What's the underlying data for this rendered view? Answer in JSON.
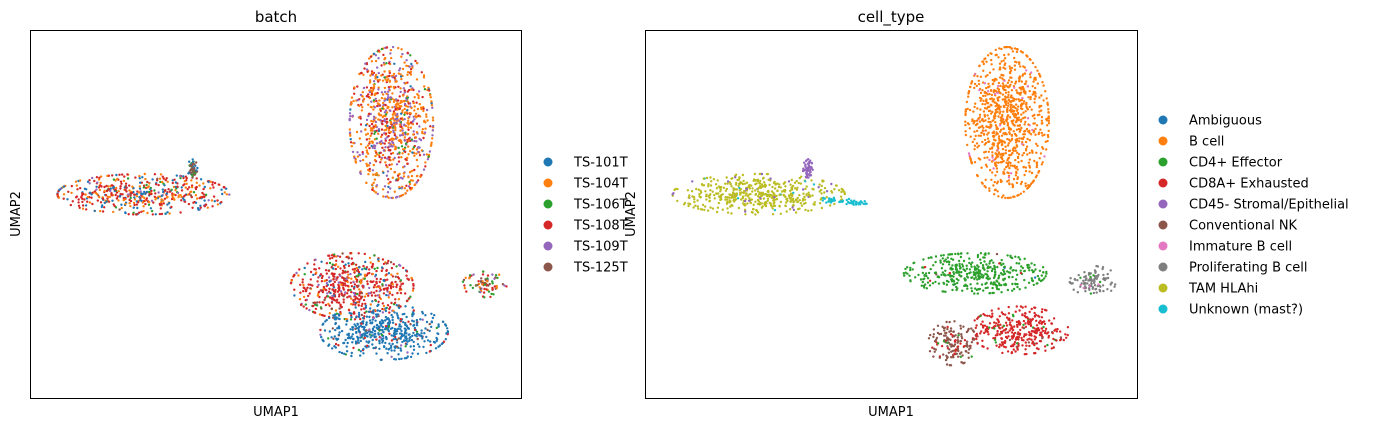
{
  "chart_data": [
    {
      "type": "scatter",
      "title": "batch",
      "xlabel": "UMAP1",
      "ylabel": "UMAP2",
      "xlim": [
        0,
        10
      ],
      "ylim": [
        0,
        10
      ],
      "grid": false,
      "ticks": false,
      "legend": "right",
      "series": [
        {
          "name": "TS-101T",
          "color": "#1f77b4"
        },
        {
          "name": "TS-104T",
          "color": "#ff7f0e"
        },
        {
          "name": "TS-106T",
          "color": "#2ca02c"
        },
        {
          "name": "TS-108T",
          "color": "#d62728"
        },
        {
          "name": "TS-109T",
          "color": "#9467bd"
        },
        {
          "name": "TS-125T",
          "color": "#8c564b"
        }
      ],
      "clusters": [
        {
          "shape": "blob",
          "cx": 7.35,
          "cy": 7.5,
          "rx": 0.85,
          "ry": 2.05,
          "weights": [
            0.03,
            0.46,
            0.04,
            0.19,
            0.28,
            0.0
          ]
        },
        {
          "shape": "blob",
          "cx": 6.55,
          "cy": 3.05,
          "rx": 1.25,
          "ry": 0.9,
          "weights": [
            0.06,
            0.14,
            0.05,
            0.62,
            0.08,
            0.05
          ]
        },
        {
          "shape": "blob",
          "cx": 7.2,
          "cy": 1.8,
          "rx": 1.3,
          "ry": 0.75,
          "weights": [
            0.85,
            0.0,
            0.03,
            0.08,
            0.02,
            0.02
          ]
        },
        {
          "shape": "blob",
          "cx": 9.25,
          "cy": 3.1,
          "rx": 0.45,
          "ry": 0.35,
          "weights": [
            0.05,
            0.15,
            0.22,
            0.25,
            0.15,
            0.18
          ]
        },
        {
          "shape": "blob",
          "cx": 2.3,
          "cy": 5.55,
          "rx": 1.75,
          "ry": 0.55,
          "weights": [
            0.22,
            0.26,
            0.05,
            0.4,
            0.05,
            0.02
          ]
        },
        {
          "shape": "blob",
          "cx": 3.3,
          "cy": 6.25,
          "rx": 0.1,
          "ry": 0.25,
          "weights": [
            0.3,
            0.0,
            0.2,
            0.0,
            0.0,
            0.5
          ]
        }
      ]
    },
    {
      "type": "scatter",
      "title": "cell_type",
      "xlabel": "UMAP1",
      "ylabel": "UMAP2",
      "xlim": [
        0,
        10
      ],
      "ylim": [
        0,
        10
      ],
      "grid": false,
      "ticks": false,
      "legend": "right",
      "series": [
        {
          "name": "Ambiguous",
          "color": "#1f77b4"
        },
        {
          "name": "B cell",
          "color": "#ff7f0e"
        },
        {
          "name": "CD4+ Effector",
          "color": "#2ca02c"
        },
        {
          "name": "CD8A+ Exhausted",
          "color": "#d62728"
        },
        {
          "name": "CD45- Stromal/Epithelial",
          "color": "#9467bd"
        },
        {
          "name": "Conventional NK",
          "color": "#8c564b"
        },
        {
          "name": "Immature B cell",
          "color": "#e377c2"
        },
        {
          "name": "Proliferating B cell",
          "color": "#7f7f7f"
        },
        {
          "name": "TAM HLAhi",
          "color": "#bcbd22"
        },
        {
          "name": "Unknown (mast?)",
          "color": "#17becf"
        }
      ],
      "clusters": [
        {
          "shape": "blob",
          "cx": 7.35,
          "cy": 7.5,
          "rx": 0.85,
          "ry": 2.05,
          "weights": [
            0,
            0.97,
            0,
            0,
            0,
            0,
            0.03,
            0,
            0,
            0
          ]
        },
        {
          "shape": "blob",
          "cx": 6.7,
          "cy": 3.4,
          "rx": 1.45,
          "ry": 0.55,
          "weights": [
            0.01,
            0,
            0.95,
            0.02,
            0,
            0.02,
            0,
            0,
            0,
            0
          ]
        },
        {
          "shape": "blob",
          "cx": 7.6,
          "cy": 1.85,
          "rx": 1.0,
          "ry": 0.65,
          "weights": [
            0,
            0,
            0.04,
            0.92,
            0,
            0.04,
            0,
            0,
            0,
            0
          ]
        },
        {
          "shape": "blob",
          "cx": 6.25,
          "cy": 1.5,
          "rx": 0.5,
          "ry": 0.6,
          "weights": [
            0,
            0,
            0.04,
            0.16,
            0,
            0.8,
            0,
            0,
            0,
            0
          ]
        },
        {
          "shape": "blob",
          "cx": 9.1,
          "cy": 3.2,
          "rx": 0.5,
          "ry": 0.4,
          "weights": [
            0,
            0,
            0.06,
            0,
            0,
            0,
            0.06,
            0.88,
            0,
            0
          ]
        },
        {
          "shape": "blob",
          "cx": 2.3,
          "cy": 5.55,
          "rx": 1.75,
          "ry": 0.55,
          "weights": [
            0,
            0,
            0,
            0,
            0.05,
            0,
            0,
            0,
            0.93,
            0.02
          ]
        },
        {
          "shape": "blob",
          "cx": 3.3,
          "cy": 6.25,
          "rx": 0.1,
          "ry": 0.25,
          "weights": [
            0,
            0,
            0,
            0,
            1.0,
            0,
            0,
            0,
            0,
            0
          ]
        },
        {
          "shape": "tail",
          "cx": 4.05,
          "cy": 5.35,
          "rx": 0.45,
          "ry": 0.12,
          "weights": [
            0,
            0,
            0,
            0,
            0,
            0,
            0,
            0,
            0,
            1.0
          ]
        }
      ]
    }
  ]
}
